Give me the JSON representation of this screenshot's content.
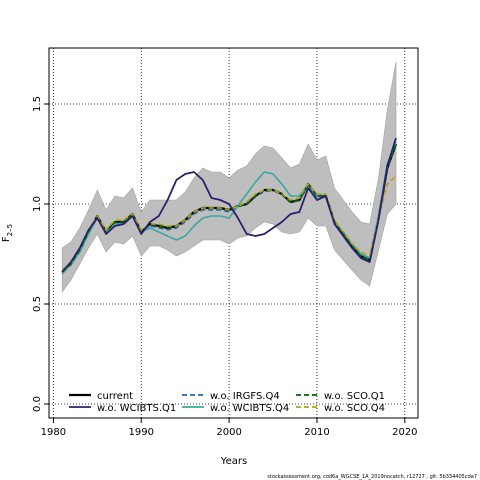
{
  "chart_data": {
    "type": "line",
    "xlabel": "Years",
    "ylabel": "F",
    "ylabel_sub": "2–5",
    "xlim": [
      1979.5,
      2021.5
    ],
    "ylim": [
      -0.07,
      1.78
    ],
    "xticks": [
      1980,
      1990,
      2000,
      2010,
      2020
    ],
    "yticks": [
      0.0,
      0.5,
      1.0,
      1.5
    ],
    "ytick_labels": [
      "0.0",
      "0.5",
      "1.0",
      "1.5"
    ],
    "grid": "dotted at ticks",
    "x": [
      1981,
      1982,
      1983,
      1984,
      1985,
      1986,
      1987,
      1988,
      1989,
      1990,
      1991,
      1992,
      1993,
      1994,
      1995,
      1996,
      1997,
      1998,
      1999,
      2000,
      2001,
      2002,
      2003,
      2004,
      2005,
      2006,
      2007,
      2008,
      2009,
      2010,
      2011,
      2012,
      2013,
      2014,
      2015,
      2016,
      2017,
      2018,
      2019
    ],
    "confidence_band": {
      "color": "#bebebe",
      "upper": [
        0.78,
        0.81,
        0.88,
        0.97,
        1.07,
        0.97,
        1.04,
        1.03,
        1.08,
        0.96,
        1.02,
        1.02,
        1.02,
        1.02,
        1.06,
        1.13,
        1.18,
        1.16,
        1.16,
        1.13,
        1.17,
        1.19,
        1.25,
        1.29,
        1.28,
        1.23,
        1.18,
        1.2,
        1.3,
        1.22,
        1.24,
        1.08,
        1.02,
        0.96,
        0.91,
        0.9,
        1.13,
        1.47,
        1.71
      ],
      "lower": [
        0.56,
        0.62,
        0.7,
        0.78,
        0.85,
        0.76,
        0.81,
        0.8,
        0.84,
        0.74,
        0.79,
        0.79,
        0.77,
        0.74,
        0.76,
        0.79,
        0.82,
        0.82,
        0.82,
        0.8,
        0.83,
        0.84,
        0.88,
        0.91,
        0.9,
        0.86,
        0.85,
        0.86,
        0.93,
        0.89,
        0.89,
        0.77,
        0.72,
        0.67,
        0.62,
        0.59,
        0.77,
        0.95,
        1.0
      ]
    },
    "series": [
      {
        "name": "current",
        "color": "#000000",
        "dash": "solid",
        "values": [
          0.66,
          0.7,
          0.77,
          0.86,
          0.94,
          0.86,
          0.91,
          0.91,
          0.95,
          0.86,
          0.9,
          0.89,
          0.88,
          0.89,
          0.92,
          0.96,
          0.98,
          0.98,
          0.98,
          0.97,
          0.99,
          1.0,
          1.04,
          1.07,
          1.07,
          1.05,
          1.01,
          1.02,
          1.1,
          1.04,
          1.04,
          0.91,
          0.85,
          0.79,
          0.74,
          0.72,
          0.93,
          1.18,
          1.3
        ]
      },
      {
        "name": "w.o. WCIBTS.Q1",
        "color": "#2b1f6e",
        "dash": "solid",
        "values": [
          0.66,
          0.71,
          0.78,
          0.87,
          0.93,
          0.85,
          0.89,
          0.9,
          0.94,
          0.85,
          0.91,
          0.94,
          1.02,
          1.12,
          1.15,
          1.16,
          1.12,
          1.03,
          1.02,
          1.0,
          0.93,
          0.85,
          0.84,
          0.85,
          0.88,
          0.91,
          0.95,
          0.96,
          1.08,
          1.02,
          1.04,
          0.9,
          0.84,
          0.78,
          0.73,
          0.71,
          0.92,
          1.19,
          1.33
        ]
      },
      {
        "name": "w.o. IRGFS.Q4",
        "color": "#2166ac",
        "dash": "dashed",
        "values": [
          0.65,
          0.7,
          0.76,
          0.85,
          0.93,
          0.86,
          0.9,
          0.91,
          0.94,
          0.86,
          0.89,
          0.88,
          0.87,
          0.88,
          0.91,
          0.95,
          0.97,
          0.97,
          0.97,
          0.96,
          0.99,
          1.0,
          1.04,
          1.06,
          1.07,
          1.05,
          1.01,
          1.02,
          1.09,
          1.03,
          1.04,
          0.91,
          0.85,
          0.79,
          0.74,
          0.72,
          0.93,
          1.18,
          1.3
        ]
      },
      {
        "name": "w.o. WCIBTS.Q4",
        "color": "#3aa8a0",
        "dash": "solid",
        "values": [
          0.65,
          0.7,
          0.76,
          0.85,
          0.93,
          0.86,
          0.9,
          0.9,
          0.94,
          0.86,
          0.88,
          0.86,
          0.84,
          0.82,
          0.84,
          0.89,
          0.93,
          0.94,
          0.94,
          0.93,
          0.99,
          1.05,
          1.11,
          1.16,
          1.15,
          1.1,
          1.04,
          1.04,
          1.1,
          1.04,
          1.04,
          0.91,
          0.86,
          0.8,
          0.75,
          0.73,
          0.94,
          1.2,
          1.31
        ]
      },
      {
        "name": "w.o. SCO.Q1",
        "color": "#006400",
        "dash": "dashed",
        "values": [
          0.66,
          0.7,
          0.77,
          0.86,
          0.94,
          0.86,
          0.91,
          0.91,
          0.95,
          0.86,
          0.9,
          0.89,
          0.88,
          0.89,
          0.92,
          0.96,
          0.98,
          0.98,
          0.98,
          0.97,
          0.99,
          1.0,
          1.04,
          1.07,
          1.07,
          1.05,
          1.01,
          1.02,
          1.1,
          1.04,
          1.04,
          0.91,
          0.85,
          0.79,
          0.74,
          0.72,
          0.93,
          1.18,
          1.3
        ]
      },
      {
        "name": "w.o. SCO.Q4",
        "color": "#b5a412",
        "dash": "dashed",
        "values": [
          0.67,
          0.71,
          0.78,
          0.87,
          0.94,
          0.87,
          0.92,
          0.92,
          0.95,
          0.87,
          0.9,
          0.9,
          0.89,
          0.89,
          0.92,
          0.96,
          0.98,
          0.98,
          0.98,
          0.97,
          0.99,
          1.01,
          1.05,
          1.07,
          1.07,
          1.05,
          1.02,
          1.03,
          1.1,
          1.05,
          1.05,
          0.92,
          0.86,
          0.8,
          0.76,
          0.74,
          0.93,
          1.1,
          1.14
        ]
      }
    ]
  },
  "footnote": "stockassessment.org, cod6a_WGCSE_1A_2019nocatch, r12727 , git: 5b334405cda7"
}
